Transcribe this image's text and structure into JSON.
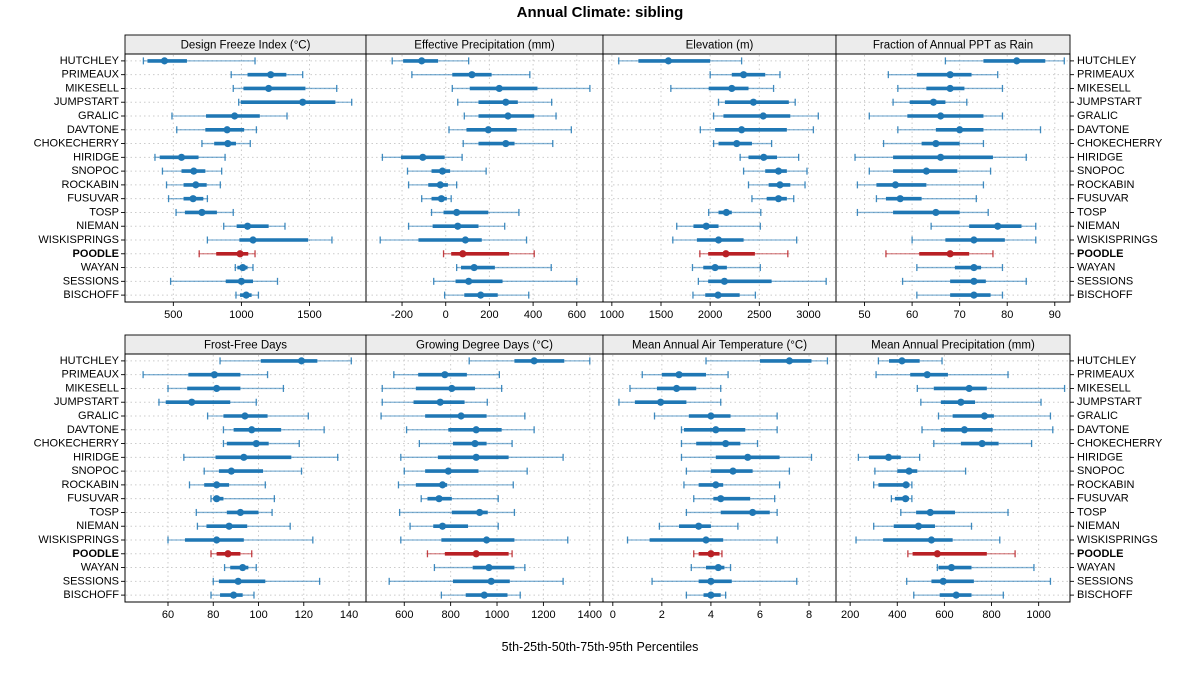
{
  "chart_data": {
    "type": "dotplot-intervals",
    "title": "Annual Climate: sibling",
    "xlabel": "5th-25th-50th-75th-95th Percentiles",
    "percentiles": [
      5,
      25,
      50,
      75,
      95
    ],
    "legend_position": "none",
    "grid": "dotted",
    "colors": {
      "normal": "#1f77b4",
      "highlight": "#b92025",
      "strip_bg": "#ececec",
      "grid_line": "#cbcbcb",
      "panel_border": "#000000"
    },
    "highlight_station": "POODLE",
    "stations": [
      "HUTCHLEY",
      "PRIMEAUX",
      "MIKESELL",
      "JUMPSTART",
      "GRALIC",
      "DAVTONE",
      "CHOKECHERRY",
      "HIRIDGE",
      "SNOPOC",
      "ROCKABIN",
      "FUSUVAR",
      "TOSP",
      "NIEMAN",
      "WISKISPRINGS",
      "POODLE",
      "WAYAN",
      "SESSIONS",
      "BISCHOFF"
    ],
    "panels": [
      {
        "title": "Design Freeze Index (°C)",
        "grid_row": 0,
        "grid_col": 0,
        "xlim": [
          145,
          1915
        ],
        "ticks": [
          500,
          1000,
          1500
        ],
        "values": [
          [
            280,
            310,
            435,
            600,
            1100
          ],
          [
            925,
            1045,
            1215,
            1330,
            1450
          ],
          [
            940,
            1015,
            1200,
            1470,
            1700
          ],
          [
            980,
            995,
            1450,
            1690,
            1810
          ],
          [
            490,
            740,
            950,
            1135,
            1335
          ],
          [
            525,
            735,
            895,
            1020,
            1110
          ],
          [
            710,
            800,
            900,
            960,
            1065
          ],
          [
            365,
            400,
            560,
            685,
            880
          ],
          [
            420,
            560,
            650,
            735,
            855
          ],
          [
            450,
            575,
            665,
            745,
            845
          ],
          [
            465,
            575,
            645,
            720,
            750
          ],
          [
            520,
            585,
            710,
            820,
            940
          ],
          [
            870,
            965,
            1045,
            1200,
            1320
          ],
          [
            750,
            985,
            1085,
            1490,
            1665
          ],
          [
            690,
            815,
            990,
            1050,
            1100
          ],
          [
            955,
            970,
            1010,
            1045,
            1085
          ],
          [
            480,
            885,
            1000,
            1085,
            1265
          ],
          [
            960,
            990,
            1035,
            1075,
            1125
          ]
        ]
      },
      {
        "title": "Effective Precipitation (mm)",
        "grid_row": 0,
        "grid_col": 1,
        "xlim": [
          -365,
          720
        ],
        "ticks": [
          -200,
          0,
          200,
          400,
          600
        ],
        "values": [
          [
            -245,
            -195,
            -110,
            -35,
            105
          ],
          [
            -155,
            30,
            120,
            210,
            385
          ],
          [
            30,
            110,
            245,
            420,
            660
          ],
          [
            55,
            150,
            275,
            330,
            485
          ],
          [
            85,
            150,
            285,
            405,
            505
          ],
          [
            15,
            95,
            195,
            325,
            575
          ],
          [
            80,
            150,
            275,
            315,
            490
          ],
          [
            -290,
            -205,
            -105,
            -5,
            75
          ],
          [
            -175,
            -65,
            -15,
            20,
            185
          ],
          [
            -170,
            -80,
            -25,
            10,
            50
          ],
          [
            -110,
            -65,
            -20,
            5,
            25
          ],
          [
            -65,
            -10,
            50,
            195,
            335
          ],
          [
            -170,
            -60,
            55,
            150,
            270
          ],
          [
            -300,
            -125,
            90,
            165,
            370
          ],
          [
            -10,
            25,
            78,
            290,
            405
          ],
          [
            50,
            70,
            130,
            225,
            483
          ],
          [
            -55,
            45,
            105,
            260,
            600
          ],
          [
            -5,
            85,
            160,
            238,
            380
          ]
        ]
      },
      {
        "title": "Elevation (m)",
        "grid_row": 0,
        "grid_col": 2,
        "xlim": [
          910,
          3280
        ],
        "ticks": [
          1000,
          1500,
          2000,
          2500,
          3000
        ],
        "values": [
          [
            1070,
            1270,
            1575,
            2000,
            2320
          ],
          [
            2000,
            2220,
            2340,
            2560,
            2710
          ],
          [
            1600,
            1985,
            2220,
            2390,
            2645
          ],
          [
            2085,
            2150,
            2440,
            2800,
            2865
          ],
          [
            2035,
            2135,
            2540,
            2815,
            3100
          ],
          [
            1900,
            2050,
            2320,
            2780,
            3050
          ],
          [
            2035,
            2085,
            2270,
            2425,
            2625
          ],
          [
            2305,
            2390,
            2545,
            2680,
            2900
          ],
          [
            2340,
            2560,
            2695,
            2780,
            2985
          ],
          [
            2390,
            2595,
            2710,
            2815,
            2965
          ],
          [
            2425,
            2575,
            2695,
            2780,
            2850
          ],
          [
            1985,
            2085,
            2165,
            2220,
            2515
          ],
          [
            1660,
            1830,
            1960,
            2085,
            2510
          ],
          [
            1620,
            1865,
            2085,
            2340,
            2880
          ],
          [
            1895,
            1980,
            2160,
            2455,
            2790
          ],
          [
            1820,
            1930,
            2050,
            2170,
            2510
          ],
          [
            1880,
            1980,
            2145,
            2625,
            3180
          ],
          [
            1825,
            1950,
            2080,
            2300,
            2460
          ]
        ]
      },
      {
        "title": "Fraction of Annual PPT as Rain",
        "grid_row": 0,
        "grid_col": 3,
        "xlim": [
          44,
          93.2
        ],
        "ticks": [
          50,
          60,
          70,
          80,
          90
        ],
        "values": [
          [
            67,
            75,
            82,
            88,
            92
          ],
          [
            55,
            61,
            68,
            72.5,
            78
          ],
          [
            57,
            63,
            68,
            71,
            79
          ],
          [
            56,
            59.5,
            64.5,
            67,
            71.5
          ],
          [
            51,
            59,
            66,
            75,
            79
          ],
          [
            57,
            65,
            70,
            75,
            87
          ],
          [
            54,
            62,
            65,
            70,
            75
          ],
          [
            48,
            56,
            66,
            77,
            84
          ],
          [
            51,
            56,
            63,
            69.5,
            76.5
          ],
          [
            48.5,
            52.5,
            56.5,
            63,
            75
          ],
          [
            52.5,
            54.5,
            57.5,
            62,
            73.5
          ],
          [
            48.5,
            56,
            65,
            70,
            76
          ],
          [
            64,
            72,
            78,
            83,
            86
          ],
          [
            60,
            67,
            73,
            79.5,
            86
          ],
          [
            54.5,
            61.5,
            68,
            72,
            77
          ],
          [
            61,
            69,
            73,
            74.5,
            79
          ],
          [
            58,
            68,
            73,
            75.5,
            84
          ],
          [
            61,
            68,
            73,
            76.5,
            79
          ]
        ]
      },
      {
        "title": "Frost-Free Days",
        "grid_row": 1,
        "grid_col": 0,
        "xlim": [
          41,
          147.5
        ],
        "ticks": [
          60,
          80,
          100,
          120,
          140
        ],
        "values": [
          [
            83,
            101,
            119,
            126,
            141
          ],
          [
            49,
            69,
            80.5,
            92,
            104
          ],
          [
            60,
            68.5,
            81.5,
            92,
            111
          ],
          [
            56,
            59,
            70.5,
            87.5,
            99
          ],
          [
            77.5,
            84.5,
            94,
            104,
            122
          ],
          [
            84.5,
            89,
            97,
            110,
            129
          ],
          [
            84.5,
            86,
            99,
            104.5,
            118
          ],
          [
            67,
            81,
            93.5,
            114.5,
            135
          ],
          [
            76,
            82.5,
            88,
            102,
            119
          ],
          [
            69.5,
            76,
            81.5,
            87,
            103
          ],
          [
            79,
            80,
            81.5,
            84.5,
            107
          ],
          [
            72.5,
            86,
            92,
            100,
            106
          ],
          [
            73,
            77,
            87,
            95,
            114
          ],
          [
            60,
            67.5,
            81.5,
            93.5,
            124
          ],
          [
            79,
            81.5,
            86.5,
            92,
            97
          ],
          [
            85,
            87.5,
            93,
            95.5,
            99
          ],
          [
            80,
            82.5,
            91,
            103,
            127
          ],
          [
            79,
            83,
            89,
            93,
            98
          ]
        ]
      },
      {
        "title": "Growing Degree Days (°C)",
        "grid_row": 1,
        "grid_col": 1,
        "xlim": [
          435,
          1457
        ],
        "ticks": [
          600,
          800,
          1000,
          1200,
          1400
        ],
        "values": [
          [
            880,
            1075,
            1160,
            1290,
            1400
          ],
          [
            555,
            660,
            775,
            870,
            1010
          ],
          [
            505,
            650,
            805,
            905,
            1020
          ],
          [
            505,
            640,
            755,
            860,
            958
          ],
          [
            500,
            690,
            845,
            955,
            1120
          ],
          [
            610,
            790,
            910,
            1020,
            1160
          ],
          [
            665,
            810,
            905,
            955,
            1065
          ],
          [
            585,
            745,
            910,
            1050,
            1285
          ],
          [
            600,
            690,
            790,
            920,
            1130
          ],
          [
            575,
            650,
            765,
            785,
            1070
          ],
          [
            673,
            700,
            750,
            805,
            1005
          ],
          [
            580,
            805,
            925,
            960,
            1075
          ],
          [
            625,
            725,
            765,
            875,
            1005
          ],
          [
            585,
            760,
            955,
            1075,
            1305
          ],
          [
            700,
            775,
            910,
            1050,
            1065
          ],
          [
            730,
            895,
            965,
            1075,
            1120
          ],
          [
            535,
            810,
            975,
            1055,
            1285
          ],
          [
            760,
            865,
            945,
            1045,
            1100
          ]
        ]
      },
      {
        "title": "Mean Annual Air Temperature (°C)",
        "grid_row": 1,
        "grid_col": 2,
        "xlim": [
          -0.4,
          9.1
        ],
        "ticks": [
          0,
          2,
          4,
          6,
          8
        ],
        "values": [
          [
            3.8,
            6.0,
            7.2,
            8.1,
            8.75
          ],
          [
            1.2,
            2.0,
            2.7,
            3.8,
            4.7
          ],
          [
            0.7,
            1.8,
            2.6,
            3.4,
            4.4
          ],
          [
            0.25,
            0.9,
            1.95,
            3.0,
            4.4
          ],
          [
            1.7,
            3.1,
            4.0,
            4.8,
            6.7
          ],
          [
            2.8,
            2.9,
            4.2,
            5.4,
            6.7
          ],
          [
            2.8,
            3.4,
            4.6,
            5.2,
            5.9
          ],
          [
            2.8,
            4.2,
            5.5,
            6.8,
            8.1
          ],
          [
            3.0,
            4.0,
            4.9,
            5.7,
            7.2
          ],
          [
            2.9,
            3.5,
            4.2,
            4.5,
            6.8
          ],
          [
            3.3,
            4.1,
            4.4,
            5.6,
            6.6
          ],
          [
            3.0,
            4.4,
            5.7,
            6.4,
            6.7
          ],
          [
            1.9,
            2.7,
            3.5,
            4.0,
            5.1
          ],
          [
            0.6,
            1.5,
            3.8,
            4.5,
            6.7
          ],
          [
            3.3,
            3.5,
            4.0,
            4.35,
            4.45
          ],
          [
            3.2,
            3.8,
            4.3,
            4.55,
            4.8
          ],
          [
            1.6,
            3.5,
            4.0,
            4.85,
            7.5
          ],
          [
            3.0,
            3.7,
            4.0,
            4.4,
            4.6
          ]
        ]
      },
      {
        "title": "Mean Annual Precipitation (mm)",
        "grid_row": 1,
        "grid_col": 3,
        "xlim": [
          140,
          1133
        ],
        "ticks": [
          200,
          400,
          600,
          800,
          1000
        ],
        "values": [
          [
            320,
            365,
            420,
            495,
            590
          ],
          [
            310,
            455,
            527,
            615,
            870
          ],
          [
            485,
            555,
            705,
            780,
            1110
          ],
          [
            500,
            585,
            670,
            730,
            1010
          ],
          [
            575,
            635,
            770,
            810,
            1050
          ],
          [
            505,
            585,
            685,
            805,
            1060
          ],
          [
            555,
            670,
            760,
            830,
            970
          ],
          [
            235,
            280,
            363,
            415,
            495
          ],
          [
            305,
            400,
            450,
            485,
            690
          ],
          [
            300,
            320,
            437,
            452,
            462
          ],
          [
            375,
            390,
            435,
            450,
            462
          ],
          [
            415,
            480,
            540,
            645,
            870
          ],
          [
            300,
            385,
            490,
            560,
            715
          ],
          [
            225,
            340,
            545,
            635,
            835
          ],
          [
            445,
            465,
            570,
            780,
            900
          ],
          [
            570,
            575,
            630,
            715,
            980
          ],
          [
            440,
            545,
            595,
            725,
            1050
          ],
          [
            470,
            580,
            650,
            715,
            850
          ]
        ]
      }
    ]
  }
}
